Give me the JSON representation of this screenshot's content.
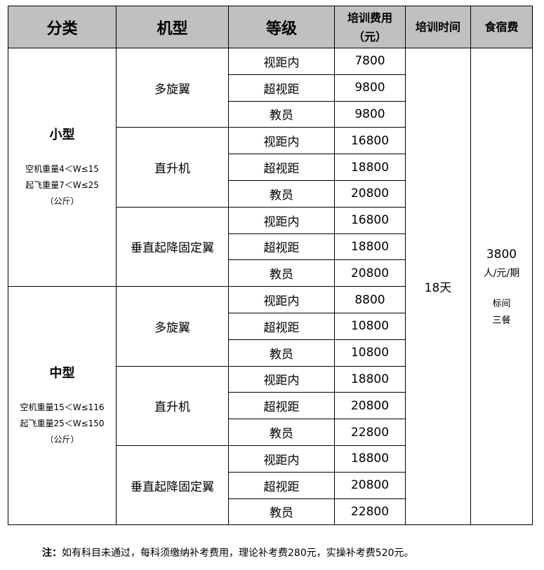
{
  "header": {
    "category": "分类",
    "model": "机型",
    "level": "等级",
    "fee_line1": "培训费用",
    "fee_line2": "（元）",
    "duration": "培训时间",
    "board": "食宿费"
  },
  "categories": [
    {
      "title": "小型",
      "notes": [
        "空机重量4＜W≤15",
        "起飞重量7＜W≤25",
        "（公斤）"
      ],
      "models": [
        {
          "name": "多旋翼",
          "levels": [
            {
              "level": "视距内",
              "fee": "7800"
            },
            {
              "level": "超视距",
              "fee": "9800"
            },
            {
              "level": "教员",
              "fee": "9800"
            }
          ]
        },
        {
          "name": "直升机",
          "levels": [
            {
              "level": "视距内",
              "fee": "16800"
            },
            {
              "level": "超视距",
              "fee": "18800"
            },
            {
              "level": "教员",
              "fee": "20800"
            }
          ]
        },
        {
          "name": "垂直起降固定翼",
          "levels": [
            {
              "level": "视距内",
              "fee": "16800"
            },
            {
              "level": "超视距",
              "fee": "18800"
            },
            {
              "level": "教员",
              "fee": "20800"
            }
          ]
        }
      ]
    },
    {
      "title": "中型",
      "notes": [
        "空机重量15＜W≤116",
        "起飞重量25＜W≤150",
        "（公斤）"
      ],
      "models": [
        {
          "name": "多旋翼",
          "levels": [
            {
              "level": "视距内",
              "fee": "8800"
            },
            {
              "level": "超视距",
              "fee": "10800"
            },
            {
              "level": "教员",
              "fee": "10800"
            }
          ]
        },
        {
          "name": "直升机",
          "levels": [
            {
              "level": "视距内",
              "fee": "18800"
            },
            {
              "level": "超视距",
              "fee": "20800"
            },
            {
              "level": "教员",
              "fee": "22800"
            }
          ]
        },
        {
          "name": "垂直起降固定翼",
          "levels": [
            {
              "level": "视距内",
              "fee": "18800"
            },
            {
              "level": "超视距",
              "fee": "20800"
            },
            {
              "level": "教员",
              "fee": "22800"
            }
          ]
        }
      ]
    }
  ],
  "duration": "18天",
  "board": {
    "price": "3800",
    "unit": "人/元/期",
    "room": "标间",
    "meals": "三餐"
  },
  "footer": {
    "label": "注：",
    "text": "如有科目未通过，每科须缴纳补考费用，理论补考费280元，实操补考费520元。"
  }
}
